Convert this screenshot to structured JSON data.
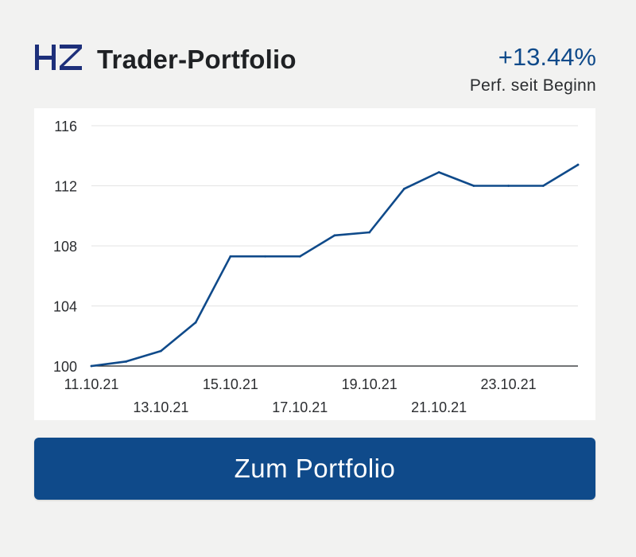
{
  "header": {
    "logo_text": "HZ",
    "title": "Trader-Portfolio",
    "performance_value": "+13.44%",
    "performance_label": "Perf. seit Beginn"
  },
  "colors": {
    "brand_blue": "#0f4a8a",
    "line": "#0f4a8a",
    "grid": "#e3e3e3",
    "background": "#f2f2f1",
    "card": "#ffffff"
  },
  "chart_data": {
    "type": "line",
    "title": "",
    "xlabel": "",
    "ylabel": "",
    "ylim": [
      100,
      116
    ],
    "y_ticks": [
      100,
      104,
      108,
      112,
      116
    ],
    "grid": true,
    "x_tick_labels": [
      "11.10.21",
      "13.10.21",
      "15.10.21",
      "17.10.21",
      "19.10.21",
      "21.10.21",
      "23.10.21"
    ],
    "x_tick_positions": [
      1,
      3,
      5,
      7,
      9,
      11,
      13
    ],
    "series": [
      {
        "values": [
          100.0,
          100.3,
          101.0,
          102.9,
          107.3,
          107.3,
          107.3,
          108.7,
          108.9,
          111.8,
          112.9,
          112.0,
          112.0,
          112.0,
          113.4
        ]
      }
    ]
  },
  "button": {
    "label": "Zum Portfolio"
  }
}
